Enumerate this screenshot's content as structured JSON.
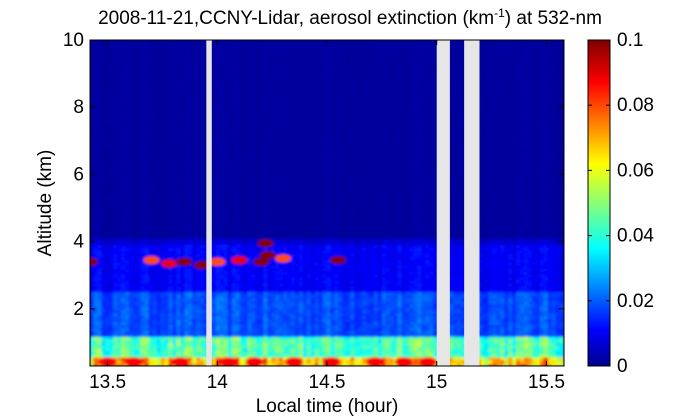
{
  "chart_data": {
    "type": "heatmap",
    "title_main": "2008-11-21,CCNY-Lidar, aerosol extinction (km",
    "title_sup": "-1",
    "title_tail": ") at 532-nm",
    "xlabel": "Local time (hour)",
    "ylabel": "Altitude (km)",
    "xlim": [
      13.42,
      15.58
    ],
    "ylim": [
      0.3,
      10
    ],
    "xticks": [
      13.5,
      14,
      14.5,
      15,
      15.5
    ],
    "xtick_labels": [
      "13.5",
      "14",
      "14.5",
      "15",
      "15.5"
    ],
    "yticks": [
      2,
      4,
      6,
      8,
      10
    ],
    "ytick_labels": [
      "2",
      "4",
      "6",
      "8",
      "10"
    ],
    "colorbar": {
      "colormap": "jet",
      "range": [
        0,
        0.1
      ],
      "ticks": [
        0,
        0.02,
        0.04,
        0.06,
        0.08,
        0.1
      ],
      "tick_labels": [
        "0",
        "0.02",
        "0.04",
        "0.06",
        "0.08",
        "0.1"
      ]
    },
    "data_gaps_hours": [
      [
        13.95,
        13.975
      ],
      [
        15.0,
        15.06
      ],
      [
        15.125,
        15.195
      ]
    ],
    "background_extinction": {
      "above_4km": 0.003,
      "from_2.5_to_4km": 0.012,
      "from_1.2_to_2.5km": 0.02,
      "from_0.6_to_1.2km": 0.045,
      "below_0.6km": 0.07
    },
    "features": [
      {
        "name": "aerosol layer",
        "x": 13.42,
        "y": 3.4,
        "value": 0.1
      },
      {
        "name": "aerosol layer",
        "x": 13.7,
        "y": 3.45,
        "value": 0.08
      },
      {
        "name": "aerosol layer",
        "x": 13.78,
        "y": 3.35,
        "value": 0.09
      },
      {
        "name": "aerosol layer",
        "x": 13.85,
        "y": 3.4,
        "value": 0.1
      },
      {
        "name": "aerosol layer",
        "x": 13.93,
        "y": 3.3,
        "value": 0.1
      },
      {
        "name": "aerosol layer",
        "x": 14.0,
        "y": 3.4,
        "value": 0.08
      },
      {
        "name": "aerosol layer",
        "x": 14.1,
        "y": 3.45,
        "value": 0.09
      },
      {
        "name": "aerosol layer",
        "x": 14.2,
        "y": 3.4,
        "value": 0.1
      },
      {
        "name": "aerosol layer",
        "x": 14.23,
        "y": 3.6,
        "value": 0.1
      },
      {
        "name": "aerosol layer",
        "x": 14.22,
        "y": 3.95,
        "value": 0.1
      },
      {
        "name": "aerosol layer",
        "x": 14.3,
        "y": 3.5,
        "value": 0.08
      },
      {
        "name": "aerosol layer",
        "x": 14.55,
        "y": 3.45,
        "value": 0.1
      }
    ],
    "near_ground_maxima_hours": [
      13.5,
      13.62,
      13.83,
      14.05,
      14.17,
      14.35,
      14.52,
      14.72,
      14.85,
      14.96
    ]
  }
}
